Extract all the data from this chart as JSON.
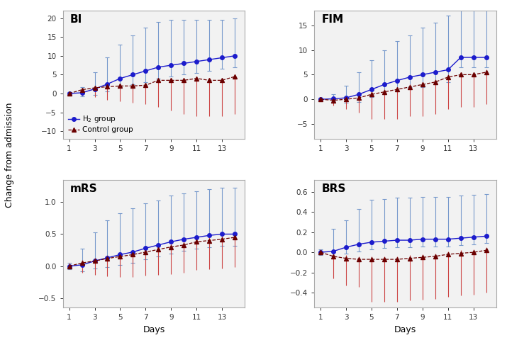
{
  "x_pts": [
    1,
    2,
    3,
    4,
    5,
    6,
    7,
    8,
    9,
    10,
    11,
    12,
    13,
    14
  ],
  "xticks": [
    1,
    3,
    5,
    7,
    9,
    11,
    13
  ],
  "xlim": [
    0.5,
    14.8
  ],
  "panels": {
    "BI": {
      "h2_mean": [
        0.0,
        0.2,
        1.2,
        2.5,
        4.0,
        5.0,
        6.0,
        7.0,
        7.5,
        8.0,
        8.5,
        9.0,
        9.5,
        10.0
      ],
      "h2_eu": [
        0.3,
        1.5,
        4.5,
        7.0,
        9.0,
        10.5,
        11.5,
        12.0,
        12.0,
        11.5,
        11.0,
        10.5,
        10.0,
        10.0
      ],
      "h2_ed": [
        0.3,
        1.0,
        1.5,
        2.0,
        2.5,
        2.5,
        3.0,
        3.0,
        3.0,
        3.0,
        3.0,
        3.0,
        3.0,
        3.0
      ],
      "ctrl_mean": [
        0.0,
        1.0,
        1.5,
        1.8,
        2.0,
        2.0,
        2.2,
        3.5,
        3.5,
        3.5,
        4.0,
        3.5,
        3.5,
        4.5
      ],
      "ctrl_eu": [
        0.3,
        0.5,
        0.5,
        0.5,
        0.5,
        0.5,
        0.5,
        0.5,
        0.5,
        0.5,
        0.5,
        0.5,
        0.5,
        0.5
      ],
      "ctrl_ed": [
        0.3,
        1.5,
        2.5,
        3.5,
        4.0,
        4.5,
        5.0,
        7.0,
        8.0,
        9.0,
        10.0,
        9.5,
        9.5,
        10.0
      ],
      "ylim": [
        -12,
        22
      ],
      "yticks": [
        -10,
        -5,
        0,
        5,
        10,
        15,
        20
      ]
    },
    "FIM": {
      "h2_mean": [
        0.0,
        0.1,
        0.3,
        1.0,
        2.0,
        3.0,
        3.8,
        4.5,
        5.0,
        5.5,
        6.0,
        8.5,
        8.5,
        8.5
      ],
      "h2_eu": [
        0.3,
        1.0,
        2.5,
        4.5,
        6.0,
        7.0,
        8.0,
        8.5,
        9.5,
        10.0,
        11.0,
        10.0,
        10.0,
        10.0
      ],
      "h2_ed": [
        0.3,
        0.5,
        1.0,
        1.5,
        1.5,
        2.0,
        2.0,
        2.0,
        2.5,
        2.5,
        2.5,
        2.0,
        2.0,
        2.0
      ],
      "ctrl_mean": [
        0.0,
        -0.2,
        0.0,
        0.3,
        1.0,
        1.5,
        2.0,
        2.5,
        3.0,
        3.5,
        4.5,
        5.0,
        5.0,
        5.5
      ],
      "ctrl_eu": [
        0.3,
        0.3,
        0.5,
        0.5,
        0.5,
        0.5,
        0.5,
        0.5,
        0.5,
        0.5,
        0.5,
        0.5,
        0.5,
        0.5
      ],
      "ctrl_ed": [
        0.3,
        1.0,
        2.0,
        3.0,
        5.0,
        5.5,
        6.0,
        6.0,
        6.5,
        6.5,
        6.5,
        6.5,
        6.5,
        6.5
      ],
      "ylim": [
        -8,
        18
      ],
      "yticks": [
        -5,
        0,
        5,
        10,
        15
      ]
    },
    "mRS": {
      "h2_mean": [
        0.0,
        0.02,
        0.08,
        0.13,
        0.18,
        0.22,
        0.28,
        0.33,
        0.38,
        0.42,
        0.45,
        0.48,
        0.5,
        0.5
      ],
      "h2_eu": [
        0.05,
        0.25,
        0.45,
        0.58,
        0.65,
        0.68,
        0.7,
        0.7,
        0.72,
        0.72,
        0.72,
        0.72,
        0.72,
        0.72
      ],
      "h2_ed": [
        0.05,
        0.1,
        0.12,
        0.15,
        0.16,
        0.17,
        0.17,
        0.18,
        0.18,
        0.18,
        0.18,
        0.18,
        0.18,
        0.18
      ],
      "ctrl_mean": [
        0.0,
        0.05,
        0.08,
        0.12,
        0.15,
        0.18,
        0.22,
        0.26,
        0.3,
        0.33,
        0.38,
        0.4,
        0.42,
        0.45
      ],
      "ctrl_eu": [
        0.05,
        0.05,
        0.05,
        0.05,
        0.05,
        0.05,
        0.05,
        0.05,
        0.05,
        0.05,
        0.05,
        0.05,
        0.05,
        0.05
      ],
      "ctrl_ed": [
        0.05,
        0.15,
        0.22,
        0.28,
        0.32,
        0.35,
        0.37,
        0.4,
        0.42,
        0.43,
        0.44,
        0.45,
        0.46,
        0.46
      ],
      "ylim": [
        -0.65,
        1.35
      ],
      "yticks": [
        -0.5,
        0.0,
        0.5,
        1.0
      ]
    },
    "BRS": {
      "h2_mean": [
        0.0,
        0.01,
        0.05,
        0.08,
        0.1,
        0.11,
        0.12,
        0.12,
        0.13,
        0.13,
        0.13,
        0.14,
        0.15,
        0.16
      ],
      "h2_eu": [
        0.03,
        0.22,
        0.27,
        0.35,
        0.42,
        0.42,
        0.42,
        0.42,
        0.42,
        0.42,
        0.42,
        0.42,
        0.42,
        0.42
      ],
      "h2_ed": [
        0.03,
        0.05,
        0.06,
        0.07,
        0.07,
        0.07,
        0.07,
        0.07,
        0.07,
        0.07,
        0.07,
        0.07,
        0.07,
        0.07
      ],
      "ctrl_mean": [
        0.0,
        -0.04,
        -0.06,
        -0.07,
        -0.07,
        -0.07,
        -0.07,
        -0.06,
        -0.05,
        -0.04,
        -0.02,
        -0.01,
        0.0,
        0.02
      ],
      "ctrl_eu": [
        0.03,
        0.03,
        0.03,
        0.03,
        0.03,
        0.03,
        0.03,
        0.03,
        0.03,
        0.03,
        0.03,
        0.03,
        0.03,
        0.03
      ],
      "ctrl_ed": [
        0.03,
        0.22,
        0.27,
        0.27,
        0.42,
        0.42,
        0.42,
        0.42,
        0.42,
        0.42,
        0.42,
        0.42,
        0.42,
        0.42
      ],
      "ylim": [
        -0.55,
        0.72
      ],
      "yticks": [
        -0.4,
        -0.2,
        0.0,
        0.2,
        0.4,
        0.6
      ]
    }
  },
  "panel_order": [
    "BI",
    "FIM",
    "mRS",
    "BRS"
  ],
  "h2_color": "#1c1ccc",
  "h2_line_color": "#3333bb",
  "ctrl_color": "#6B0000",
  "ctrl_line_color": "#8B1010",
  "ctrl_err_color": "#cc4444",
  "h2_err_color": "#7799cc",
  "ylabel": "Change from admission",
  "xlabel": "Days",
  "legend_panel": "BI",
  "bg_color": "#f2f2f2"
}
